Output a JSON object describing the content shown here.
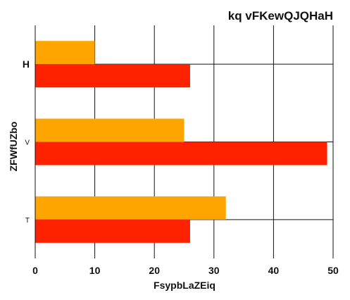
{
  "chart_data": {
    "type": "bar",
    "orientation": "horizontal",
    "title": "kq vFKewQJQHaH",
    "xlabel": "FsypbLaZEiq",
    "ylabel": "ZFWfUZbo",
    "categories": [
      "H",
      "V",
      "T"
    ],
    "series": [
      {
        "values": [
          10,
          25,
          32
        ],
        "color": "#ffa500"
      },
      {
        "values": [
          26,
          49,
          26
        ],
        "color": "#ff2200"
      }
    ],
    "xlim": [
      0,
      50
    ],
    "xticks": [
      0,
      10,
      20,
      30,
      40,
      50
    ],
    "grid": true,
    "legend": "none"
  }
}
